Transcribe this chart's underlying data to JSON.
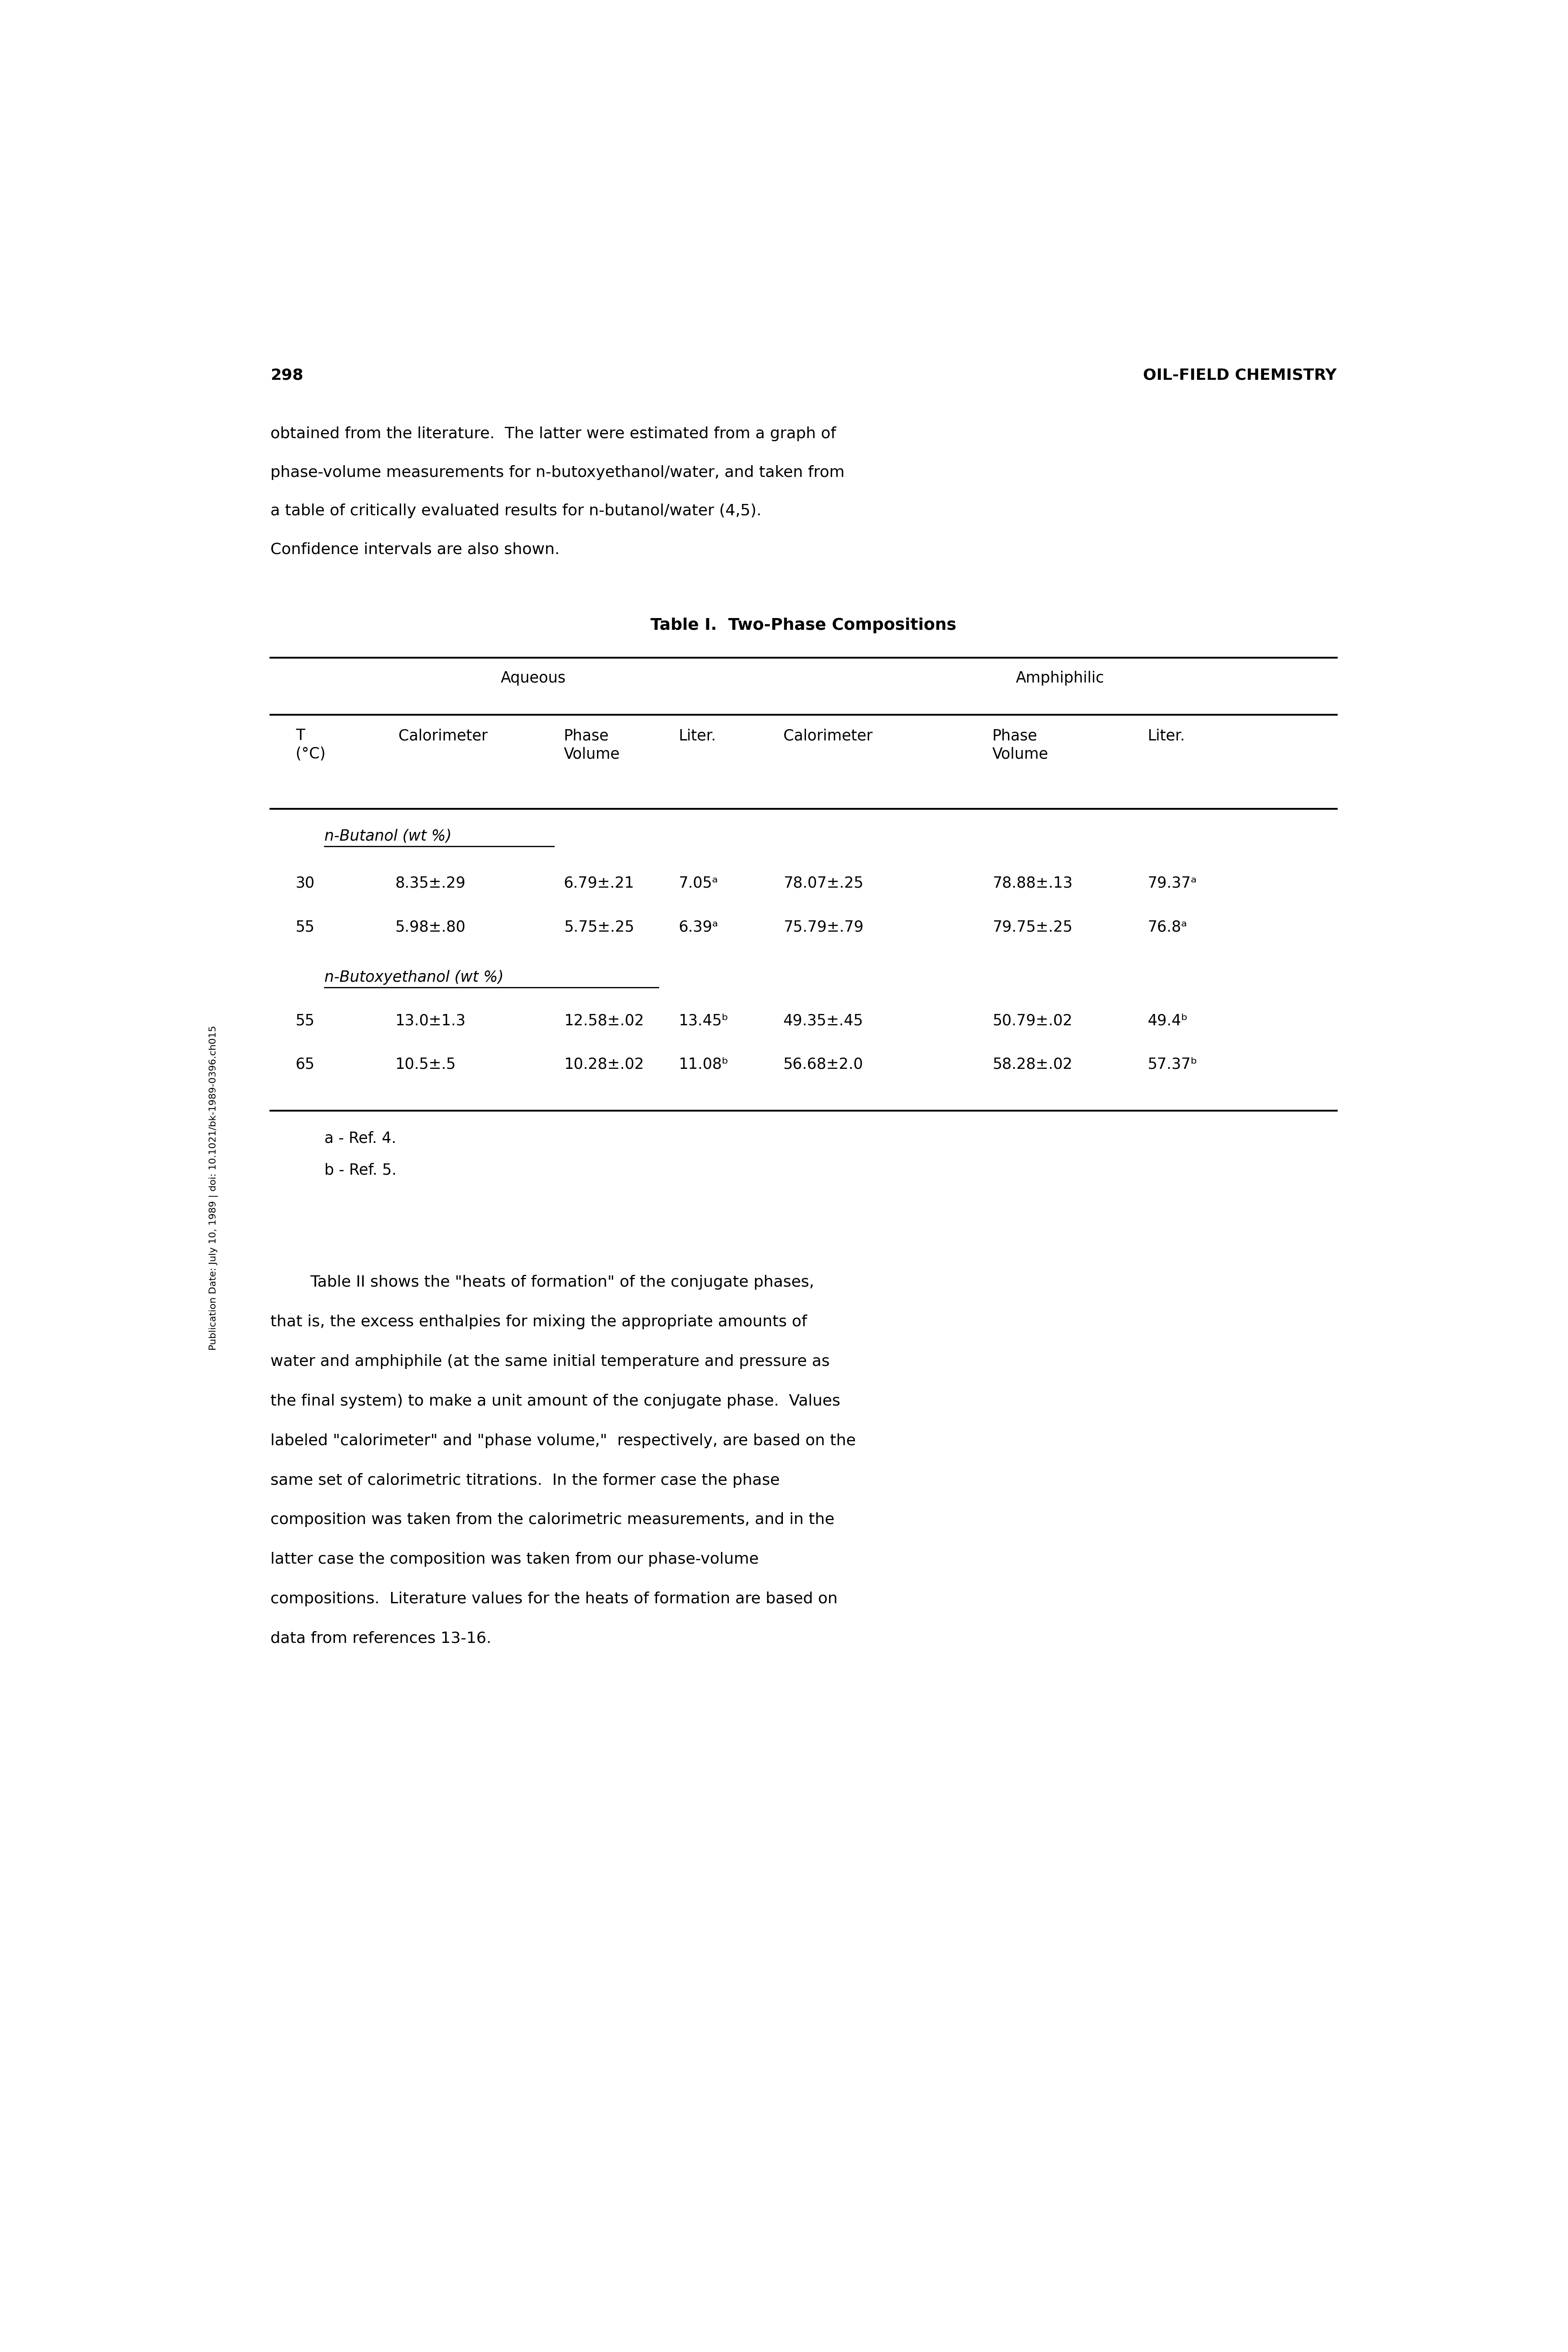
{
  "page_number": "298",
  "header_right": "OIL-FIELD CHEMISTRY",
  "side_text": "Publication Date: July 10, 1989 | doi: 10.1021/bk-1989-0396.ch015",
  "intro_text_lines": [
    "obtained from the literature.  The latter were estimated from a graph of",
    "phase-volume measurements for n-butoxyethanol/water, and taken from",
    "a table of critically evaluated results for n-butanol/water (4,5).",
    "Confidence intervals are also shown."
  ],
  "table1_title": "Table I.  Two-Phase Compositions",
  "table1_section1_label": "n-Butanol (wt %)",
  "table1_section1_rows": [
    [
      "30",
      "8.35±.29",
      "6.79±.21",
      "7.05ᵃ",
      "78.07±.25",
      "78.88±.13",
      "79.37ᵃ"
    ],
    [
      "55",
      "5.98±.80",
      "5.75±.25",
      "6.39ᵃ",
      "75.79±.79",
      "79.75±.25",
      "76.8ᵃ"
    ]
  ],
  "table1_section2_label": "n-Butoxyethanol (wt %)",
  "table1_section2_rows": [
    [
      "55",
      "13.0±1.3",
      "12.58±.02",
      "13.45ᵇ",
      "49.35±.45",
      "50.79±.02",
      "49.4ᵇ"
    ],
    [
      "65",
      "10.5±.5",
      "10.28±.02",
      "11.08ᵇ",
      "56.68±2.0",
      "58.28±.02",
      "57.37ᵇ"
    ]
  ],
  "table1_footnotes": [
    "a - Ref. 4.",
    "b - Ref. 5."
  ],
  "body_text_lines": [
    "        Table II shows the \"heats of formation\" of the conjugate phases,",
    "that is, the excess enthalpies for mixing the appropriate amounts of",
    "water and amphiphile (at the same initial temperature and pressure as",
    "the final system) to make a unit amount of the conjugate phase.  Values",
    "labeled \"calorimeter\" and \"phase volume,\"  respectively, are based on the",
    "same set of calorimetric titrations.  In the former case the phase",
    "composition was taken from the calorimetric measurements, and in the",
    "latter case the composition was taken from our phase-volume",
    "compositions.  Literature values for the heats of formation are based on",
    "data from references 13-16."
  ],
  "bg_color": "#ffffff",
  "text_color": "#000000",
  "font_size_body": 26,
  "font_size_table": 25,
  "font_size_title": 27,
  "font_size_pagenumber": 26,
  "font_size_side": 16
}
